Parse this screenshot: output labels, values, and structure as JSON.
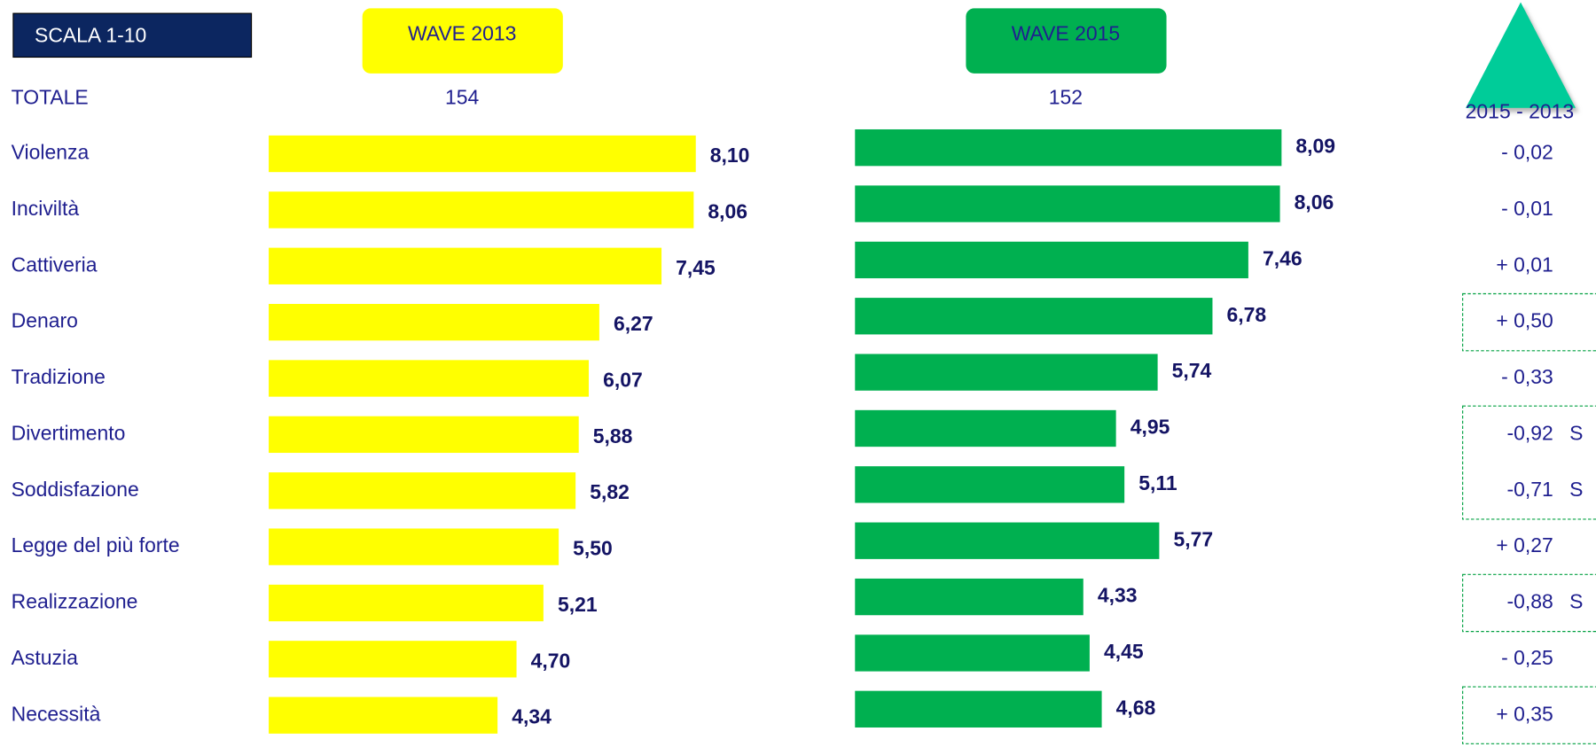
{
  "chart_data": {
    "type": "bar",
    "orientation": "horizontal",
    "scale_label": "SCALA 1-10",
    "total_label": "TOTALE",
    "categories": [
      "Violenza",
      "Inciviltà",
      "Cattiveria",
      "Denaro",
      "Tradizione",
      "Divertimento",
      "Soddisfazione",
      "Legge del più forte",
      "Realizzazione",
      "Astuzia",
      "Necessità"
    ],
    "xlim": [
      0,
      10
    ],
    "series": [
      {
        "name": "WAVE 2013",
        "color": "#ffff00",
        "total": 154,
        "values": [
          8.1,
          8.06,
          7.45,
          6.27,
          6.07,
          5.88,
          5.82,
          5.5,
          5.21,
          4.7,
          4.34
        ],
        "value_labels": [
          "8,10",
          "8,06",
          "7,45",
          "6,27",
          "6,07",
          "5,88",
          "5,82",
          "5,50",
          "5,21",
          "4,70",
          "4,34"
        ]
      },
      {
        "name": "WAVE 2015",
        "color": "#00b050",
        "total": 152,
        "values": [
          8.09,
          8.06,
          7.46,
          6.78,
          5.74,
          4.95,
          5.11,
          5.77,
          4.33,
          4.45,
          4.68
        ],
        "value_labels": [
          "8,09",
          "8,06",
          "7,46",
          "6,78",
          "5,74",
          "4,95",
          "5,11",
          "5,77",
          "4,33",
          "4,45",
          "4,68"
        ]
      }
    ],
    "differences": {
      "title": "2015 - 2013",
      "color": "#00cc99",
      "labels": [
        "- 0,02",
        "- 0,01",
        "+ 0,01",
        "+ 0,50",
        "- 0,33",
        "-0,92",
        "-0,71",
        "+ 0,27",
        "-0,88",
        "- 0,25",
        "+ 0,35"
      ],
      "flags": [
        null,
        null,
        null,
        null,
        null,
        "S",
        "S",
        null,
        "S",
        null,
        null
      ],
      "boxed": [
        false,
        false,
        false,
        true,
        false,
        true,
        true,
        false,
        true,
        false,
        true
      ]
    }
  }
}
